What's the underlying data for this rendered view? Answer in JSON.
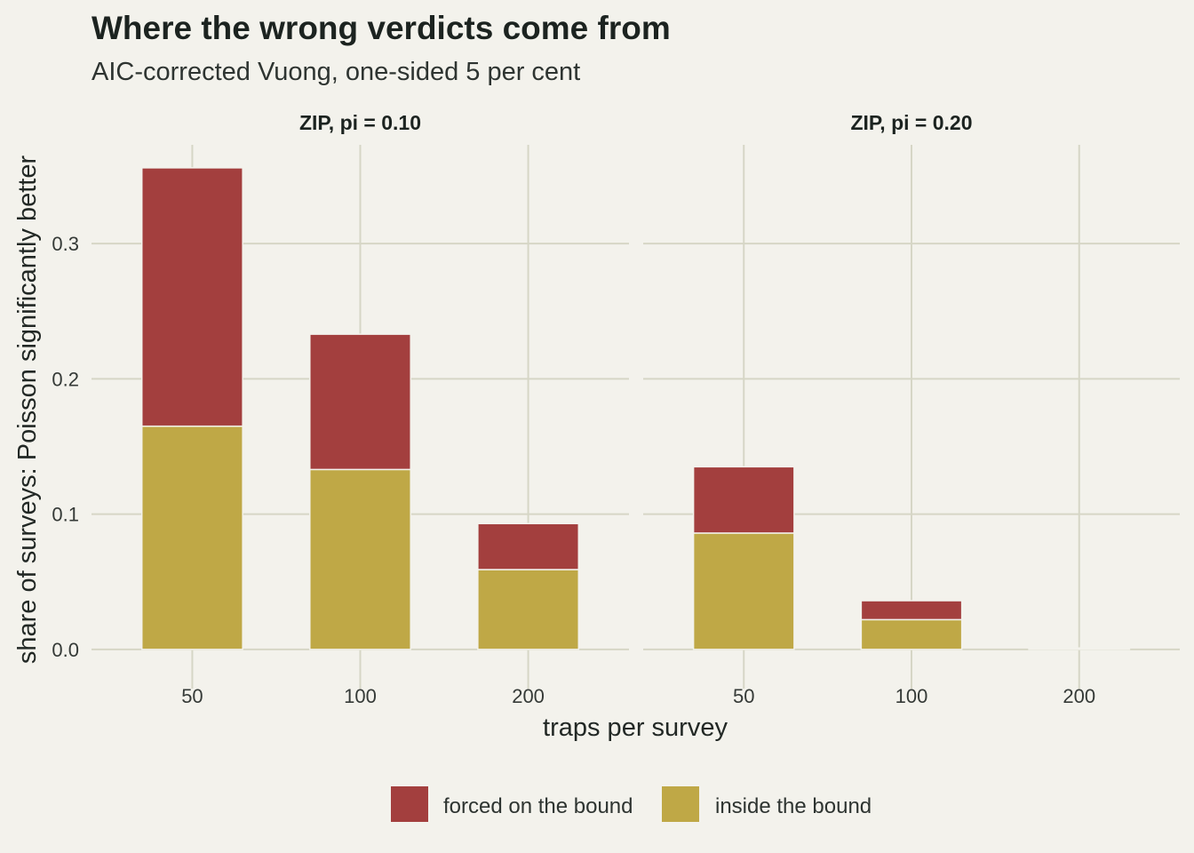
{
  "chart_data": {
    "type": "bar",
    "stacked": true,
    "title": "Where the wrong verdicts come from",
    "subtitle": "AIC-corrected Vuong, one-sided 5 per cent",
    "xlabel": "traps per survey",
    "ylabel": "share of surveys: Poisson significantly better",
    "ylim": [
      -0.029,
      0.373
    ],
    "yticks": [
      0.0,
      0.1,
      0.2,
      0.3
    ],
    "ytick_labels": [
      "0.0",
      "0.1",
      "0.2",
      "0.3"
    ],
    "grid": true,
    "legend_position": "bottom",
    "categories": [
      "50",
      "100",
      "200"
    ],
    "series_meta": [
      {
        "name": "forced on the bound",
        "color": "#a33f3e"
      },
      {
        "name": "inside the bound",
        "color": "#bfa846"
      }
    ],
    "panels": [
      {
        "label": "ZIP, pi = 0.10",
        "series": [
          {
            "name": "inside the bound",
            "values": [
              0.165,
              0.133,
              0.059
            ]
          },
          {
            "name": "forced on the bound",
            "values": [
              0.191,
              0.1,
              0.034
            ]
          }
        ]
      },
      {
        "label": "ZIP, pi = 0.20",
        "series": [
          {
            "name": "inside the bound",
            "values": [
              0.086,
              0.022,
              0.001
            ]
          },
          {
            "name": "forced on the bound",
            "values": [
              0.049,
              0.014,
              0.0
            ]
          }
        ]
      }
    ]
  }
}
